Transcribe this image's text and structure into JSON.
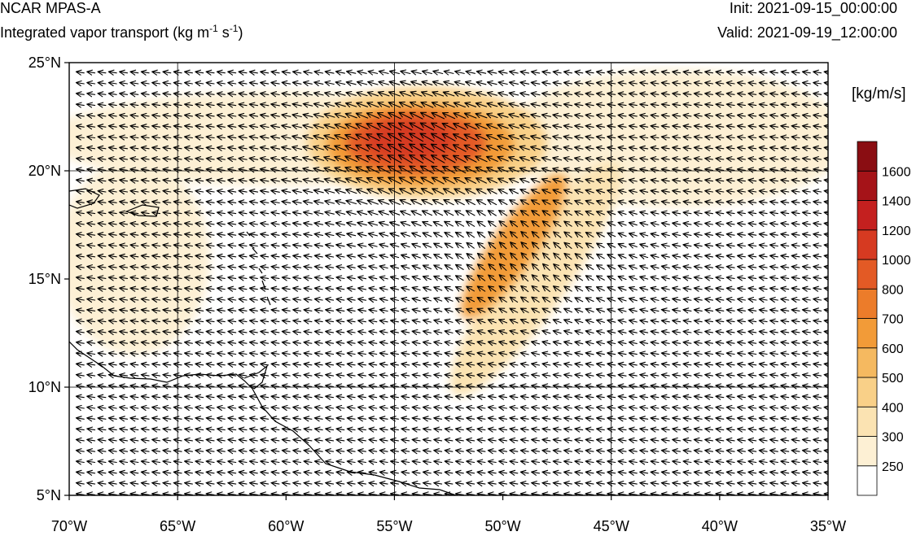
{
  "header": {
    "model": "NCAR MPAS-A",
    "variable_main": "Integrated vapor transport (kg m",
    "variable_exp1": "-1",
    "variable_mid": " s",
    "variable_exp2": "-1",
    "variable_end": ")",
    "init": "Init: 2021-09-15_00:00:00",
    "valid": "Valid: 2021-09-19_12:00:00"
  },
  "colorbar": {
    "units": "[kg/m/s]",
    "levels": [
      "250",
      "300",
      "400",
      "500",
      "600",
      "700",
      "800",
      "1000",
      "1200",
      "1400",
      "1600"
    ],
    "colors": [
      "#ffffff",
      "#fdf0d4",
      "#fbe3b2",
      "#f9d088",
      "#f5b960",
      "#f29b38",
      "#ec7c2a",
      "#e35a25",
      "#d63a21",
      "#c4201f",
      "#a51318",
      "#8a0d12"
    ]
  },
  "axes": {
    "lat_labels": [
      "25°N",
      "20°N",
      "15°N",
      "10°N",
      "5°N"
    ],
    "lon_labels": [
      "70°W",
      "65°W",
      "60°W",
      "55°W",
      "50°W",
      "45°W",
      "40°W",
      "35°W"
    ],
    "lat_range": [
      5,
      25
    ],
    "lon_range": [
      -70,
      -35
    ],
    "gridlines": true
  },
  "map_data": {
    "field": "IVT",
    "blobs": [
      {
        "lon": -53.5,
        "lat": 21.3,
        "rx": 5.5,
        "ry": 2.6,
        "rot": 0,
        "v": 400
      },
      {
        "lon": -53.8,
        "lat": 21.2,
        "rx": 4.3,
        "ry": 1.9,
        "rot": 0,
        "v": 650
      },
      {
        "lon": -54.0,
        "lat": 21.3,
        "rx": 3.2,
        "ry": 1.4,
        "rot": 0,
        "v": 900
      },
      {
        "lon": -54.3,
        "lat": 21.4,
        "rx": 2.0,
        "ry": 0.9,
        "rot": 0,
        "v": 1100
      },
      {
        "lon": -48.5,
        "lat": 15.0,
        "rx": 6.5,
        "ry": 1.5,
        "rot": 55,
        "v": 350
      },
      {
        "lon": -49.5,
        "lat": 16.5,
        "rx": 4.0,
        "ry": 1.0,
        "rot": 55,
        "v": 600
      },
      {
        "lon": -60,
        "lat": 21.5,
        "rx": 11,
        "ry": 2.2,
        "rot": 0,
        "v": 280
      },
      {
        "lon": -42,
        "lat": 21.5,
        "rx": 8,
        "ry": 3.2,
        "rot": 0,
        "v": 280
      },
      {
        "lon": -67,
        "lat": 16,
        "rx": 3.5,
        "ry": 4.5,
        "rot": 0,
        "v": 270
      }
    ],
    "flow": [
      {
        "lon": -54,
        "lat": 21,
        "u": -1.0,
        "v": 0.6,
        "s": 2.0
      },
      {
        "lon": -49,
        "lat": 16,
        "u": -0.8,
        "v": 0.8,
        "s": 1.2
      }
    ],
    "background_wind": {
      "u": -1.0,
      "v": 0.15
    }
  }
}
